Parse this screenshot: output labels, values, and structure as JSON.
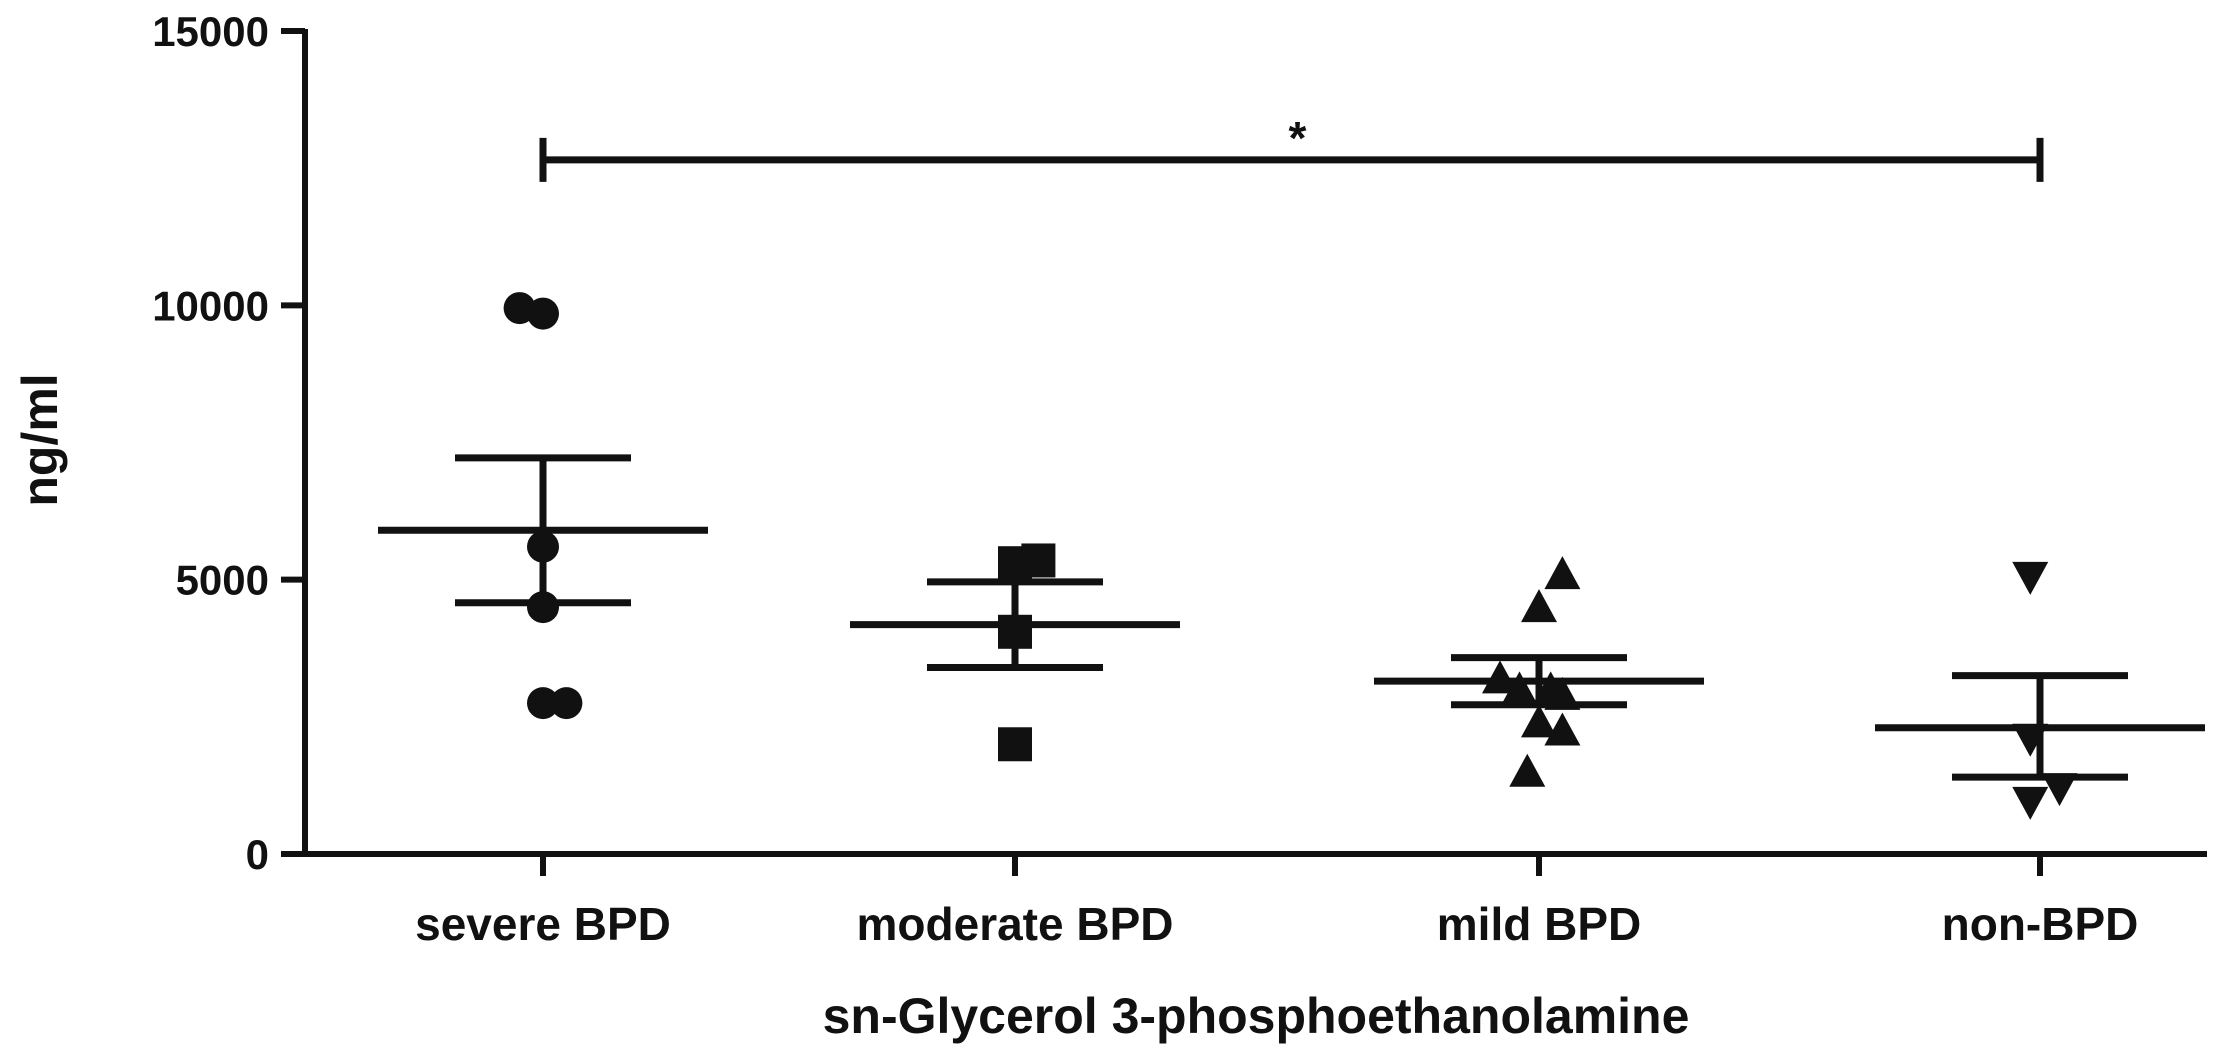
{
  "chart_data": {
    "type": "scatter",
    "xlabel": "sn-Glycerol 3-phosphoethanolamine",
    "ylabel": "ng/ml",
    "ylim": [
      0,
      15000
    ],
    "yticks": [
      0,
      5000,
      10000,
      15000
    ],
    "yticklabels": [
      "0",
      "5000",
      "10000",
      "15000"
    ],
    "grid": false,
    "categories": [
      "severe BPD",
      "moderate BPD",
      "mild BPD",
      "non-BPD"
    ],
    "groups": [
      {
        "name": "severe BPD",
        "marker": "circle",
        "points": [
          {
            "offset": -0.12,
            "y": 9950
          },
          {
            "offset": 0.0,
            "y": 9850
          },
          {
            "offset": 0.0,
            "y": 5600
          },
          {
            "offset": 0.0,
            "y": 4500
          },
          {
            "offset": 0.0,
            "y": 2750
          },
          {
            "offset": 0.12,
            "y": 2750
          }
        ],
        "mean": 5900,
        "sem_low": 4580,
        "sem_high": 7220
      },
      {
        "name": "moderate BPD",
        "marker": "square",
        "points": [
          {
            "offset": 0.0,
            "y": 5300
          },
          {
            "offset": 0.12,
            "y": 5350
          },
          {
            "offset": 0.0,
            "y": 4050
          },
          {
            "offset": 0.0,
            "y": 2000
          }
        ],
        "mean": 4180,
        "sem_low": 3400,
        "sem_high": 4960
      },
      {
        "name": "mild BPD",
        "marker": "triangle-up",
        "points": [
          {
            "offset": 0.12,
            "y": 5100
          },
          {
            "offset": 0.0,
            "y": 4500
          },
          {
            "offset": -0.2,
            "y": 3200
          },
          {
            "offset": -0.1,
            "y": 3000
          },
          {
            "offset": 0.06,
            "y": 3000
          },
          {
            "offset": 0.12,
            "y": 2900
          },
          {
            "offset": 0.0,
            "y": 2400
          },
          {
            "offset": 0.12,
            "y": 2250
          },
          {
            "offset": -0.06,
            "y": 1500
          }
        ],
        "mean": 3150,
        "sem_low": 2720,
        "sem_high": 3580
      },
      {
        "name": "non-BPD",
        "marker": "triangle-down",
        "points": [
          {
            "offset": -0.05,
            "y": 5050
          },
          {
            "offset": -0.05,
            "y": 2100
          },
          {
            "offset": 0.1,
            "y": 1200
          },
          {
            "offset": -0.05,
            "y": 950
          }
        ],
        "mean": 2300,
        "sem_low": 1400,
        "sem_high": 3250
      }
    ],
    "significance": [
      {
        "from": "severe BPD",
        "to": "non-BPD",
        "y": 12650,
        "label": "*"
      }
    ]
  }
}
